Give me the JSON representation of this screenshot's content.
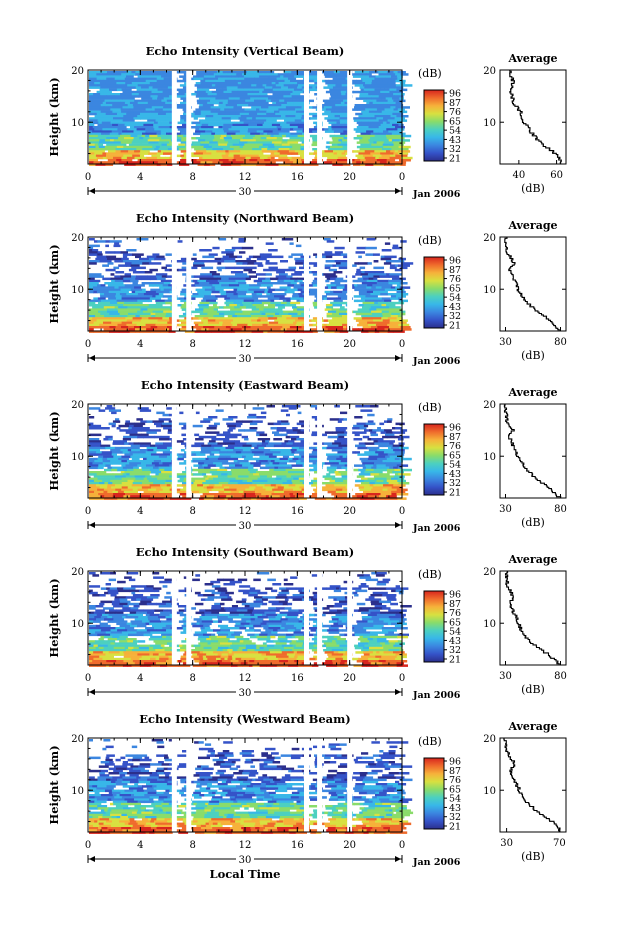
{
  "figure": {
    "x_axis_label": "Local Time",
    "date_label": "Jan 2006",
    "day_label": "30",
    "colorbar_unit": "(dB)",
    "avg_title": "Average",
    "avg_unit": "(dB)"
  },
  "colors": {
    "scale": [
      "#2b2f8c",
      "#3553c8",
      "#3b86e0",
      "#38b7e8",
      "#4cd0c0",
      "#8adc6a",
      "#d8e040",
      "#f6b13a",
      "#ef6b2c",
      "#d8261e"
    ]
  },
  "chart_data": [
    {
      "type": "heatmap",
      "title": "Echo Intensity (Vertical Beam)",
      "xlabel": "Local Time",
      "ylabel": "Height (km)",
      "x_ticks": [
        "0",
        "4",
        "8",
        "12",
        "16",
        "20",
        "0"
      ],
      "xlim": [
        0,
        24
      ],
      "y_ticks": [
        "20",
        "10"
      ],
      "ylim": [
        2,
        20
      ],
      "colorbar_ticks": [
        "96",
        "87",
        "76",
        "65",
        "54",
        "43",
        "32",
        "21"
      ],
      "data_gaps_hours": [
        6.6,
        7.7,
        16.7,
        17.7,
        20.0
      ],
      "average_profile": {
        "xlabel": "(dB)",
        "x_ticks": [
          "40",
          "60"
        ],
        "xlim": [
          30,
          65
        ],
        "y_ticks": [
          "20",
          "10"
        ],
        "points": [
          [
            63,
            2
          ],
          [
            60,
            4
          ],
          [
            52,
            6
          ],
          [
            47,
            8
          ],
          [
            43,
            10
          ],
          [
            41,
            12
          ],
          [
            37,
            14
          ],
          [
            36,
            16
          ],
          [
            37,
            18
          ],
          [
            35,
            20
          ]
        ]
      }
    },
    {
      "type": "heatmap",
      "title": "Echo Intensity (Northward Beam)",
      "xlabel": "Local Time",
      "ylabel": "Height (km)",
      "x_ticks": [
        "0",
        "4",
        "8",
        "12",
        "16",
        "20",
        "0"
      ],
      "xlim": [
        0,
        24
      ],
      "y_ticks": [
        "20",
        "10"
      ],
      "ylim": [
        2,
        20
      ],
      "colorbar_ticks": [
        "96",
        "87",
        "76",
        "65",
        "54",
        "43",
        "32",
        "21"
      ],
      "data_gaps_hours": [
        6.6,
        7.7,
        16.7,
        17.7,
        20.0
      ],
      "average_profile": {
        "xlabel": "(dB)",
        "x_ticks": [
          "30",
          "80"
        ],
        "xlim": [
          25,
          85
        ],
        "y_ticks": [
          "20",
          "10"
        ],
        "points": [
          [
            80,
            2
          ],
          [
            72,
            4
          ],
          [
            58,
            6
          ],
          [
            48,
            8
          ],
          [
            42,
            10
          ],
          [
            38,
            12
          ],
          [
            34,
            14
          ],
          [
            38,
            15
          ],
          [
            32,
            17
          ],
          [
            30,
            20
          ]
        ]
      }
    },
    {
      "type": "heatmap",
      "title": "Echo Intensity (Eastward Beam)",
      "xlabel": "Local Time",
      "ylabel": "Height (km)",
      "x_ticks": [
        "0",
        "4",
        "8",
        "12",
        "16",
        "20",
        "0"
      ],
      "xlim": [
        0,
        24
      ],
      "y_ticks": [
        "20",
        "10"
      ],
      "ylim": [
        2,
        20
      ],
      "colorbar_ticks": [
        "96",
        "87",
        "76",
        "65",
        "54",
        "43",
        "32",
        "21"
      ],
      "data_gaps_hours": [
        6.6,
        7.7,
        16.7,
        17.7,
        20.0
      ],
      "average_profile": {
        "xlabel": "(dB)",
        "x_ticks": [
          "30",
          "80"
        ],
        "xlim": [
          25,
          85
        ],
        "y_ticks": [
          "20",
          "10"
        ],
        "points": [
          [
            80,
            2
          ],
          [
            70,
            4
          ],
          [
            57,
            6
          ],
          [
            47,
            8
          ],
          [
            42,
            10
          ],
          [
            37,
            12
          ],
          [
            33,
            14
          ],
          [
            37,
            15
          ],
          [
            31,
            17
          ],
          [
            30,
            20
          ]
        ]
      }
    },
    {
      "type": "heatmap",
      "title": "Echo Intensity (Southward Beam)",
      "xlabel": "Local Time",
      "ylabel": "Height (km)",
      "x_ticks": [
        "0",
        "4",
        "8",
        "12",
        "16",
        "20",
        "0"
      ],
      "xlim": [
        0,
        24
      ],
      "y_ticks": [
        "20",
        "10"
      ],
      "ylim": [
        2,
        20
      ],
      "colorbar_ticks": [
        "96",
        "87",
        "76",
        "65",
        "54",
        "43",
        "32",
        "21"
      ],
      "data_gaps_hours": [
        6.6,
        7.7,
        16.7,
        17.7,
        20.0
      ],
      "average_profile": {
        "xlabel": "(dB)",
        "x_ticks": [
          "30",
          "80"
        ],
        "xlim": [
          25,
          85
        ],
        "y_ticks": [
          "20",
          "10"
        ],
        "points": [
          [
            80,
            2
          ],
          [
            70,
            4
          ],
          [
            56,
            6
          ],
          [
            46,
            8
          ],
          [
            42,
            10
          ],
          [
            38,
            12
          ],
          [
            34,
            14
          ],
          [
            38,
            15
          ],
          [
            32,
            17
          ],
          [
            31,
            20
          ]
        ]
      }
    },
    {
      "type": "heatmap",
      "title": "Echo Intensity (Westward Beam)",
      "xlabel": "Local Time",
      "ylabel": "Height (km)",
      "x_ticks": [
        "0",
        "4",
        "8",
        "12",
        "16",
        "20",
        "0"
      ],
      "xlim": [
        0,
        24
      ],
      "y_ticks": [
        "20",
        "10"
      ],
      "ylim": [
        2,
        20
      ],
      "colorbar_ticks": [
        "96",
        "87",
        "76",
        "65",
        "54",
        "43",
        "32",
        "21"
      ],
      "data_gaps_hours": [
        6.6,
        7.7,
        16.7,
        17.7,
        20.0
      ],
      "average_profile": {
        "xlabel": "(dB)",
        "x_ticks": [
          "30",
          "70"
        ],
        "xlim": [
          25,
          75
        ],
        "y_ticks": [
          "20",
          "10"
        ],
        "points": [
          [
            72,
            2
          ],
          [
            65,
            4
          ],
          [
            53,
            6
          ],
          [
            45,
            8
          ],
          [
            40,
            10
          ],
          [
            36,
            12
          ],
          [
            33,
            14
          ],
          [
            37,
            15
          ],
          [
            31,
            17
          ],
          [
            29,
            20
          ]
        ]
      }
    }
  ]
}
